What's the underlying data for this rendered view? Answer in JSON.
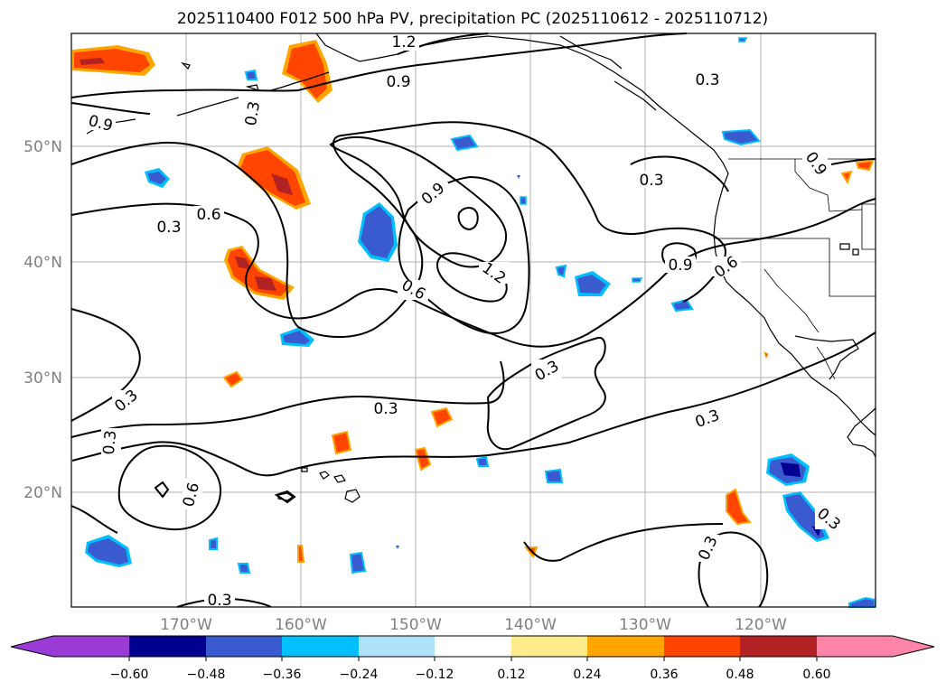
{
  "title": "2025110400 F012 500 hPa PV, precipitation PC (2025110612 - 2025110712)",
  "map": {
    "lat_labels": [
      "50°N",
      "40°N",
      "30°N",
      "20°N"
    ],
    "lon_labels": [
      "170°W",
      "160°W",
      "150°W",
      "140°W",
      "130°W",
      "120°W"
    ],
    "contour_labels": [
      "1.2",
      "0.9",
      "0.3",
      "0.3",
      "0.9",
      "0.9",
      "0.6",
      "0.3",
      "0.3",
      "0.9",
      "1.2",
      "0.6",
      "0.9",
      "0.6",
      "0.3",
      "0.3",
      "0.3",
      "0.3",
      "0.6",
      "0.3",
      "0.3",
      "0.3",
      "0.3"
    ]
  },
  "colorbar": {
    "ticks": [
      "−0.60",
      "−0.48",
      "−0.36",
      "−0.24",
      "−0.12",
      "0.12",
      "0.24",
      "0.36",
      "0.48",
      "0.60"
    ],
    "colors": [
      "#9a3bd6",
      "#000090",
      "#3a5bcf",
      "#00bfff",
      "#ade2fa",
      "#ffffff",
      "#feec8c",
      "#ffa500",
      "#ff4500",
      "#b22222",
      "#ff85a8"
    ]
  }
}
